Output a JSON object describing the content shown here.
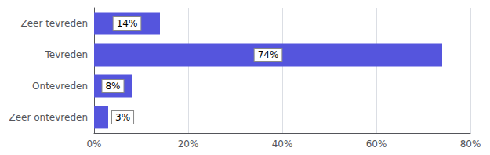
{
  "chart_data": {
    "type": "bar",
    "orientation": "horizontal",
    "categories": [
      "Zeer tevreden",
      "Tevreden",
      "Ontevreden",
      "Zeer ontevreden"
    ],
    "values": [
      14,
      74,
      8,
      3
    ],
    "value_labels": [
      "14%",
      "74%",
      "8%",
      "3%"
    ],
    "data_labels": true,
    "color": "#5555dd",
    "xlim": [
      0,
      80
    ],
    "xticks": [
      {
        "value": 0,
        "label": "0%"
      },
      {
        "value": 20,
        "label": "20%"
      },
      {
        "value": 40,
        "label": "40%"
      },
      {
        "value": 60,
        "label": "60%"
      },
      {
        "value": 80,
        "label": "80%"
      }
    ],
    "grid": true
  }
}
